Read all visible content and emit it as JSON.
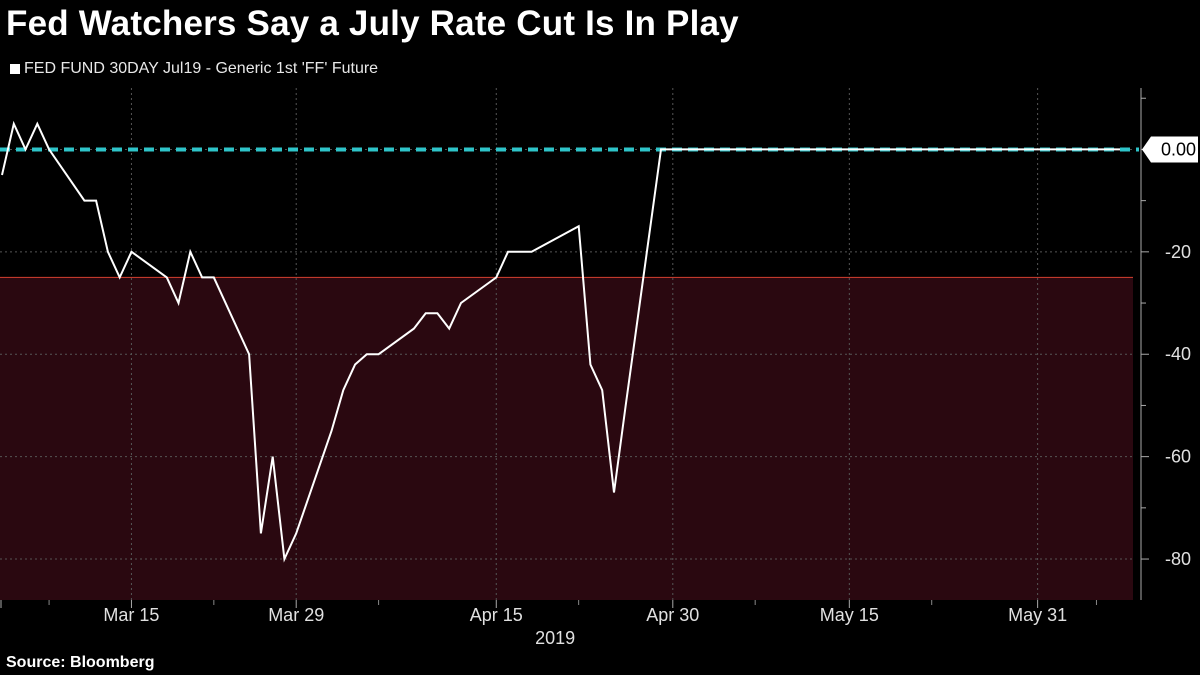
{
  "title": "Fed Watchers Say a July Rate Cut Is In Play",
  "source": "Source: Bloomberg",
  "chart_data": {
    "type": "line",
    "title": "Fed Watchers Say a July Rate Cut Is In Play",
    "xlabel": "",
    "ylabel": "",
    "grid": true,
    "legend_position": "top-left",
    "ylim": [
      -88,
      12
    ],
    "y_ticks": [
      0,
      -20,
      -40,
      -60,
      -80
    ],
    "y_tick_labels": [
      "0.00",
      "-20",
      "-40",
      "-60",
      "-80"
    ],
    "x_tick_labels": [
      "Mar 15",
      "Mar 29",
      "Apr 15",
      "Apr 30",
      "May 15",
      "May 31"
    ],
    "x_year_label": "2019",
    "reference_line": {
      "value": 0,
      "color": "#2ec4c9",
      "style": "dashed",
      "label": "0.00"
    },
    "shaded_region": {
      "from": -25,
      "to": -88,
      "color": "#2a0810",
      "border_color": "#c0392b"
    },
    "series": [
      {
        "name": "FED FUND 30DAY Jul19 - Generic 1st 'FF' Future",
        "color": "#ffffff",
        "x": [
          "2019-03-04",
          "2019-03-05",
          "2019-03-06",
          "2019-03-07",
          "2019-03-08",
          "2019-03-11",
          "2019-03-12",
          "2019-03-13",
          "2019-03-14",
          "2019-03-15",
          "2019-03-18",
          "2019-03-19",
          "2019-03-20",
          "2019-03-21",
          "2019-03-22",
          "2019-03-25",
          "2019-03-26",
          "2019-03-27",
          "2019-03-28",
          "2019-03-29",
          "2019-04-01",
          "2019-04-02",
          "2019-04-03",
          "2019-04-04",
          "2019-04-05",
          "2019-04-08",
          "2019-04-09",
          "2019-04-10",
          "2019-04-11",
          "2019-04-12",
          "2019-04-15",
          "2019-04-16",
          "2019-04-17",
          "2019-04-18",
          "2019-04-22",
          "2019-04-23",
          "2019-04-24",
          "2019-04-25",
          "2019-04-26",
          "2019-04-29",
          "2019-04-30",
          "2019-05-01",
          "2019-05-02",
          "2019-05-03",
          "2019-05-06",
          "2019-05-07",
          "2019-05-08",
          "2019-05-09",
          "2019-05-10",
          "2019-05-13",
          "2019-05-14",
          "2019-05-15",
          "2019-05-16",
          "2019-05-17",
          "2019-05-20",
          "2019-05-21",
          "2019-05-22",
          "2019-05-23",
          "2019-05-24",
          "2019-05-28",
          "2019-05-29",
          "2019-05-30",
          "2019-05-31",
          "2019-06-03",
          "2019-06-04",
          "2019-06-05",
          "2019-06-06",
          "2019-06-07"
        ],
        "y": [
          -5,
          5,
          0,
          5,
          0,
          -10,
          -10,
          -20,
          -25,
          -20,
          -25,
          -30,
          -20,
          -25,
          -25,
          -40,
          -75,
          -60,
          -80,
          -75,
          -55,
          -47,
          -42,
          -40,
          -40,
          -35,
          -32,
          -32,
          -35,
          -30,
          -25,
          -20,
          -20,
          -20,
          -15,
          -42,
          -47,
          -67,
          -50,
          0,
          0,
          0,
          0,
          0,
          0,
          0,
          0,
          0,
          0,
          0,
          0,
          0,
          0,
          0,
          0,
          0,
          0,
          0,
          0,
          0,
          0,
          0,
          0,
          0,
          0,
          0,
          0,
          0
        ]
      }
    ]
  }
}
